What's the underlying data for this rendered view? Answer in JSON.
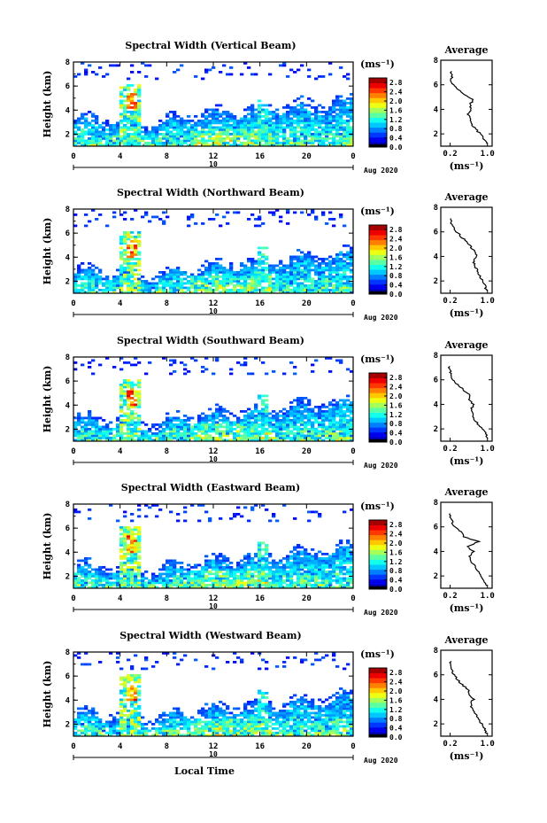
{
  "figure": {
    "date_label": "Aug 2020",
    "xlabel_bottom": "Local Time"
  },
  "chart_data": [
    {
      "type": "heatmap",
      "title": "Spectral Width (Vertical Beam)",
      "ylabel": "Height (km)",
      "xlabel": "",
      "x_ticks": [
        "0",
        "4",
        "8",
        "12",
        "16",
        "20",
        "0"
      ],
      "y_ticks": [
        "2",
        "4",
        "6",
        "8"
      ],
      "xlim": [
        0,
        24
      ],
      "ylim": [
        1,
        8
      ],
      "day_label": "10",
      "date_label": "Aug 2020",
      "colorbar": {
        "unit": "(ms⁻¹)",
        "ticks": [
          "0.0",
          "0.4",
          "0.8",
          "1.2",
          "1.6",
          "2.0",
          "2.4",
          "2.8"
        ],
        "range": [
          0,
          3.0
        ]
      },
      "profile": {
        "title": "Average",
        "xlabel": "(ms⁻¹)",
        "x_ticks": [
          "0.2",
          "1.0"
        ],
        "y_ticks": [
          "2",
          "4",
          "6",
          "8"
        ],
        "xlim": [
          0,
          1.1
        ],
        "ylim": [
          1,
          8
        ],
        "heights": [
          1.2,
          1.6,
          2.0,
          2.4,
          2.8,
          3.2,
          3.6,
          4.0,
          4.4,
          4.8,
          5.2,
          5.6,
          6.0,
          6.4,
          6.8,
          7.2
        ],
        "values": [
          0.98,
          0.92,
          0.84,
          0.75,
          0.66,
          0.62,
          0.58,
          0.64,
          0.62,
          0.7,
          0.48,
          0.38,
          0.26,
          0.22,
          0.24,
          0.2
        ]
      }
    },
    {
      "type": "heatmap",
      "title": "Spectral Width (Northward Beam)",
      "ylabel": "Height (km)",
      "xlabel": "",
      "x_ticks": [
        "0",
        "4",
        "8",
        "12",
        "16",
        "20",
        "0"
      ],
      "y_ticks": [
        "2",
        "4",
        "6",
        "8"
      ],
      "xlim": [
        0,
        24
      ],
      "ylim": [
        1,
        8
      ],
      "day_label": "10",
      "date_label": "Aug 2020",
      "colorbar": {
        "unit": "(ms⁻¹)",
        "ticks": [
          "0.0",
          "0.4",
          "0.8",
          "1.2",
          "1.6",
          "2.0",
          "2.4",
          "2.8"
        ],
        "range": [
          0,
          3.0
        ]
      },
      "profile": {
        "title": "Average",
        "xlabel": "(ms⁻¹)",
        "x_ticks": [
          "0.2",
          "1.0"
        ],
        "y_ticks": [
          "2",
          "4",
          "6",
          "8"
        ],
        "xlim": [
          0,
          1.1
        ],
        "ylim": [
          1,
          8
        ],
        "heights": [
          1.2,
          1.6,
          2.0,
          2.4,
          2.8,
          3.2,
          3.6,
          4.0,
          4.4,
          4.8,
          5.2,
          5.6,
          6.0,
          6.4,
          6.8,
          7.2
        ],
        "values": [
          0.98,
          0.95,
          0.9,
          0.84,
          0.78,
          0.74,
          0.7,
          0.76,
          0.72,
          0.64,
          0.55,
          0.44,
          0.34,
          0.26,
          0.22,
          0.18
        ]
      }
    },
    {
      "type": "heatmap",
      "title": "Spectral Width (Southward Beam)",
      "ylabel": "Height (km)",
      "xlabel": "",
      "x_ticks": [
        "0",
        "4",
        "8",
        "12",
        "16",
        "20",
        "0"
      ],
      "y_ticks": [
        "2",
        "4",
        "6",
        "8"
      ],
      "xlim": [
        0,
        24
      ],
      "ylim": [
        1,
        8
      ],
      "day_label": "10",
      "date_label": "Aug 2020",
      "colorbar": {
        "unit": "(ms⁻¹)",
        "ticks": [
          "0.0",
          "0.4",
          "0.8",
          "1.2",
          "1.6",
          "2.0",
          "2.4",
          "2.8"
        ],
        "range": [
          0,
          3.0
        ]
      },
      "profile": {
        "title": "Average",
        "xlabel": "(ms⁻¹)",
        "x_ticks": [
          "0.2",
          "1.0"
        ],
        "y_ticks": [
          "2",
          "4",
          "6",
          "8"
        ],
        "xlim": [
          0,
          1.1
        ],
        "ylim": [
          1,
          8
        ],
        "heights": [
          1.2,
          1.6,
          2.0,
          2.4,
          2.8,
          3.2,
          3.6,
          4.0,
          4.4,
          4.8,
          5.2,
          5.6,
          6.0,
          6.4,
          6.8,
          7.2
        ],
        "values": [
          1.0,
          0.96,
          0.9,
          0.8,
          0.72,
          0.68,
          0.66,
          0.7,
          0.6,
          0.62,
          0.48,
          0.36,
          0.26,
          0.22,
          0.2,
          0.16
        ]
      }
    },
    {
      "type": "heatmap",
      "title": "Spectral Width (Eastward Beam)",
      "ylabel": "Height (km)",
      "xlabel": "",
      "x_ticks": [
        "0",
        "4",
        "8",
        "12",
        "16",
        "20",
        "0"
      ],
      "y_ticks": [
        "2",
        "4",
        "6",
        "8"
      ],
      "xlim": [
        0,
        24
      ],
      "ylim": [
        1,
        8
      ],
      "day_label": "10",
      "date_label": "Aug 2020",
      "colorbar": {
        "unit": "(ms⁻¹)",
        "ticks": [
          "0.0",
          "0.4",
          "0.8",
          "1.2",
          "1.6",
          "2.0",
          "2.4",
          "2.8"
        ],
        "range": [
          0,
          3.0
        ]
      },
      "profile": {
        "title": "Average",
        "xlabel": "(ms⁻¹)",
        "x_ticks": [
          "0.2",
          "1.0"
        ],
        "y_ticks": [
          "2",
          "4",
          "6",
          "8"
        ],
        "xlim": [
          0,
          1.1
        ],
        "ylim": [
          1,
          8
        ],
        "heights": [
          1.2,
          1.6,
          2.0,
          2.4,
          2.8,
          3.2,
          3.6,
          4.0,
          4.4,
          4.8,
          5.2,
          5.6,
          6.0,
          6.4,
          6.8,
          7.2
        ],
        "values": [
          0.98,
          0.94,
          0.88,
          0.8,
          0.72,
          0.66,
          0.62,
          0.7,
          0.58,
          0.8,
          0.5,
          0.44,
          0.3,
          0.24,
          0.2,
          0.16
        ]
      }
    },
    {
      "type": "heatmap",
      "title": "Spectral Width (Westward Beam)",
      "ylabel": "Height (km)",
      "xlabel": "Local Time",
      "x_ticks": [
        "0",
        "4",
        "8",
        "12",
        "16",
        "20",
        "0"
      ],
      "y_ticks": [
        "2",
        "4",
        "6",
        "8"
      ],
      "xlim": [
        0,
        24
      ],
      "ylim": [
        1,
        8
      ],
      "day_label": "10",
      "date_label": "Aug 2020",
      "colorbar": {
        "unit": "(ms⁻¹)",
        "ticks": [
          "0.0",
          "0.4",
          "0.8",
          "1.2",
          "1.6",
          "2.0",
          "2.4",
          "2.8"
        ],
        "range": [
          0,
          3.0
        ]
      },
      "profile": {
        "title": "Average",
        "xlabel": "(ms⁻¹)",
        "x_ticks": [
          "0.2",
          "1.0"
        ],
        "y_ticks": [
          "2",
          "4",
          "6",
          "8"
        ],
        "xlim": [
          0,
          1.1
        ],
        "ylim": [
          1,
          8
        ],
        "heights": [
          1.2,
          1.6,
          2.0,
          2.4,
          2.8,
          3.2,
          3.6,
          4.0,
          4.4,
          4.8,
          5.2,
          5.6,
          6.0,
          6.4,
          6.8,
          7.2
        ],
        "values": [
          0.98,
          0.94,
          0.88,
          0.8,
          0.74,
          0.68,
          0.64,
          0.7,
          0.62,
          0.58,
          0.46,
          0.36,
          0.28,
          0.24,
          0.22,
          0.2
        ]
      }
    }
  ]
}
